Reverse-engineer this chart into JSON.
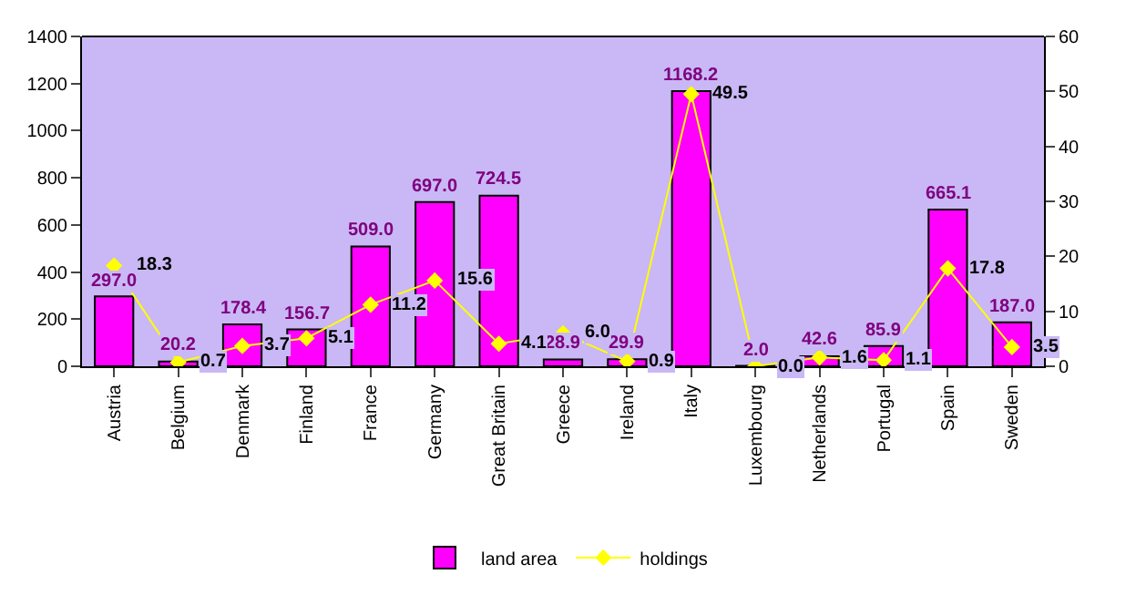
{
  "chart_data": {
    "type": "bar",
    "categories": [
      "Austria",
      "Belgium",
      "Denmark",
      "Finland",
      "France",
      "Germany",
      "Great Britain",
      "Greece",
      "Ireland",
      "Italy",
      "Luxembourg",
      "Netherlands",
      "Portugal",
      "Spain",
      "Sweden"
    ],
    "series": [
      {
        "name": "land area",
        "color": "#ff00ff",
        "values": [
          297.0,
          20.2,
          178.4,
          156.7,
          509.0,
          697.0,
          724.5,
          28.9,
          29.9,
          1168.2,
          2.0,
          42.6,
          85.9,
          665.1,
          187.0
        ],
        "value_labels": [
          "297.0",
          "20.2",
          "178.4",
          "156.7",
          "509.0",
          "697.0",
          "724.5",
          "28.9",
          "29.9",
          "1168.2",
          "2.0",
          "42.6",
          "85.9",
          "665.1",
          "187.0"
        ]
      },
      {
        "name": "holdings",
        "type": "line",
        "axis": "y2",
        "color": "#ffff00",
        "values": [
          18.3,
          0.7,
          3.7,
          5.1,
          11.2,
          15.6,
          4.1,
          6.0,
          0.9,
          49.5,
          0.0,
          1.6,
          1.1,
          17.8,
          3.5
        ],
        "value_labels": [
          "18.3",
          "0.7",
          "3.7",
          "5.1",
          "11.2",
          "15.6",
          "4.1",
          "6.0",
          "0.9",
          "49.5",
          "0.0",
          "1.6",
          "1.1",
          "17.8",
          "3.5"
        ]
      }
    ],
    "ylim": [
      0,
      1400
    ],
    "yticks": [
      0,
      200,
      400,
      600,
      800,
      1000,
      1200,
      1400
    ],
    "y2lim": [
      0,
      60
    ],
    "y2ticks": [
      0,
      10,
      20,
      30,
      40,
      50,
      60
    ],
    "data_labels": true,
    "grid": false,
    "legend": "bottom",
    "marker": "diamond",
    "line_style": "solid"
  }
}
